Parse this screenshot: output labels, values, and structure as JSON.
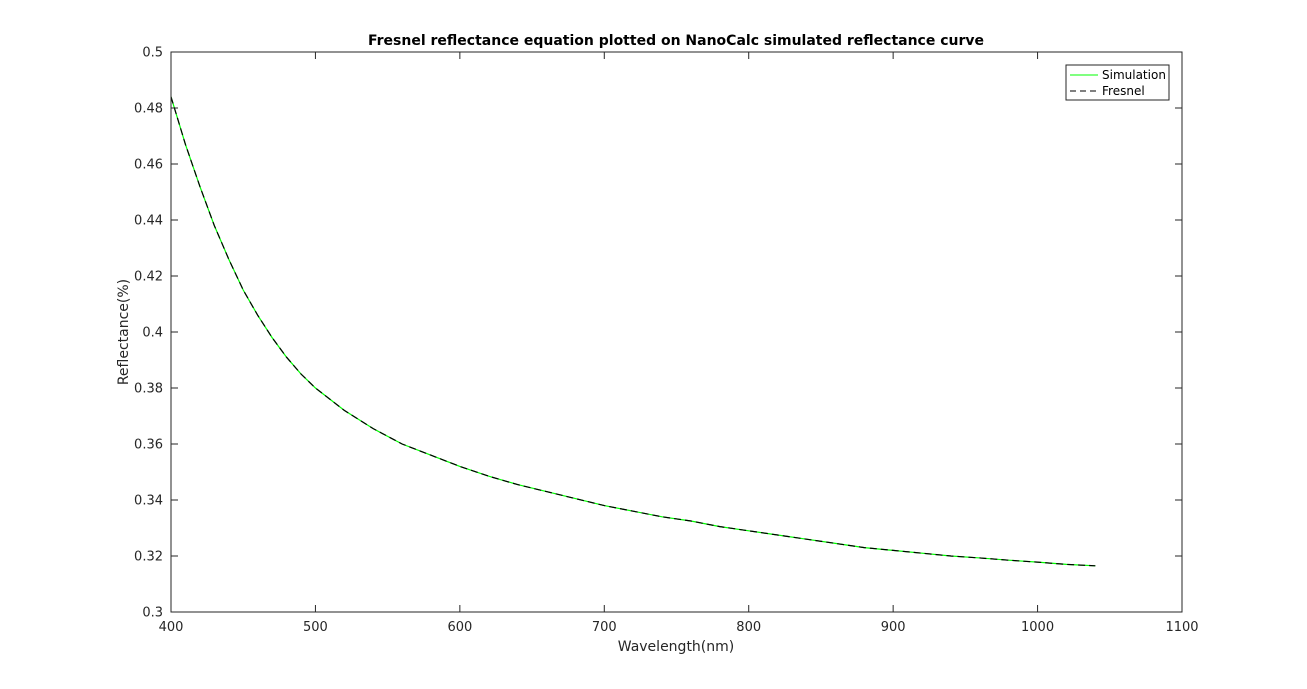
{
  "chart_data": {
    "type": "line",
    "title": "Fresnel reflectance equation plotted on NanoCalc simulated reflectance curve",
    "xlabel": "Wavelength(nm)",
    "ylabel": "Reflectance(%)",
    "xlim": [
      400,
      1100
    ],
    "ylim": [
      0.3,
      0.5
    ],
    "xticks": [
      "400",
      "500",
      "600",
      "700",
      "800",
      "900",
      "1000",
      "1100"
    ],
    "yticks": [
      "0.3",
      "0.32",
      "0.34",
      "0.36",
      "0.38",
      "0.4",
      "0.42",
      "0.44",
      "0.46",
      "0.48",
      "0.5"
    ],
    "grid": false,
    "legend_position": "top-right",
    "series": [
      {
        "name": "Simulation",
        "color": "#00ff00",
        "style": "solid",
        "x": [
          400,
          410,
          420,
          430,
          440,
          450,
          460,
          470,
          480,
          490,
          500,
          520,
          540,
          560,
          580,
          600,
          620,
          640,
          660,
          680,
          700,
          720,
          740,
          760,
          780,
          800,
          820,
          840,
          860,
          880,
          900,
          920,
          940,
          960,
          980,
          1000,
          1020,
          1040
        ],
        "y": [
          0.484,
          0.467,
          0.452,
          0.438,
          0.426,
          0.415,
          0.406,
          0.398,
          0.391,
          0.385,
          0.38,
          0.372,
          0.3655,
          0.36,
          0.356,
          0.352,
          0.3485,
          0.3455,
          0.343,
          0.3405,
          0.338,
          0.336,
          0.334,
          0.3325,
          0.3305,
          0.329,
          0.3275,
          0.326,
          0.3245,
          0.323,
          0.322,
          0.321,
          0.32,
          0.3193,
          0.3185,
          0.3178,
          0.317,
          0.3165
        ]
      },
      {
        "name": "Fresnel",
        "color": "#000000",
        "style": "dashed",
        "x": [
          400,
          410,
          420,
          430,
          440,
          450,
          460,
          470,
          480,
          490,
          500,
          520,
          540,
          560,
          580,
          600,
          620,
          640,
          660,
          680,
          700,
          720,
          740,
          760,
          780,
          800,
          820,
          840,
          860,
          880,
          900,
          920,
          940,
          960,
          980,
          1000,
          1020,
          1040
        ],
        "y": [
          0.484,
          0.467,
          0.452,
          0.438,
          0.426,
          0.415,
          0.406,
          0.398,
          0.391,
          0.385,
          0.38,
          0.372,
          0.3655,
          0.36,
          0.356,
          0.352,
          0.3485,
          0.3455,
          0.343,
          0.3405,
          0.338,
          0.336,
          0.334,
          0.3325,
          0.3305,
          0.329,
          0.3275,
          0.326,
          0.3245,
          0.323,
          0.322,
          0.321,
          0.32,
          0.3193,
          0.3185,
          0.3178,
          0.317,
          0.3165
        ]
      }
    ]
  }
}
